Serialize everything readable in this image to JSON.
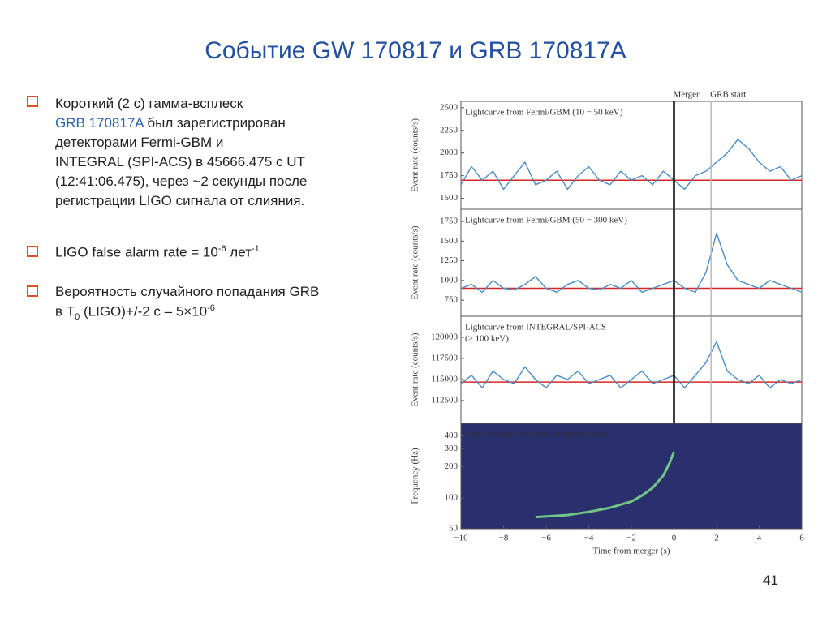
{
  "title": "Событие GW 170817 и GRB 170817A",
  "bullets": [
    {
      "lines": [
        "Короткий (2 с) гамма-всплеск",
        [
          "GRB 170817A",
          " был зарегистрирован"
        ],
        "детекторами Fermi-GBM и",
        "INTEGRAL (SPI-ACS) в 45666.475 с UT",
        "(12:41:06.475), через ~2 секунды после",
        "регистрации LIGO сигнала от слияния."
      ]
    },
    {
      "lines": [
        [
          "LIGO false alarm rate = 10",
          "-6",
          " лет",
          "-1"
        ]
      ]
    },
    {
      "lines": [
        "Вероятность случайного попадания GRB",
        [
          "в T",
          "0",
          " (LIGO)+/-2 с – 5×10",
          "-6"
        ]
      ]
    }
  ],
  "page_number": "41",
  "chart_data": [
    {
      "type": "line",
      "title": "Lightcurve from Fermi/GBM (10 − 50 keV)",
      "ylabel": "Event rate (counts/s)",
      "xlim": [
        -10,
        6
      ],
      "ylim": [
        1380,
        2570
      ],
      "yticks": [
        1500,
        1750,
        2000,
        2250,
        2500
      ],
      "annotations": [
        {
          "x": 0,
          "label": "Merger",
          "color": "#000000"
        },
        {
          "x": 1.74,
          "label": "GRB start",
          "color": "#bbbbbb"
        }
      ],
      "reference_line": {
        "value": 1700,
        "color": "#d62728"
      },
      "series": [
        {
          "color": "#4a8cc4",
          "x": [
            -10,
            -9.5,
            -9,
            -8.5,
            -8,
            -7.5,
            -7,
            -6.5,
            -6,
            -5.5,
            -5,
            -4.5,
            -4,
            -3.5,
            -3,
            -2.5,
            -2,
            -1.5,
            -1,
            -0.5,
            0,
            0.5,
            1,
            1.5,
            2,
            2.5,
            3,
            3.5,
            4,
            4.5,
            5,
            5.5,
            6
          ],
          "values": [
            1650,
            1850,
            1700,
            1800,
            1600,
            1750,
            1900,
            1650,
            1700,
            1800,
            1600,
            1750,
            1850,
            1700,
            1650,
            1800,
            1700,
            1750,
            1650,
            1800,
            1700,
            1600,
            1750,
            1800,
            1900,
            2000,
            2150,
            2050,
            1900,
            1800,
            1850,
            1700,
            1750
          ]
        }
      ]
    },
    {
      "type": "line",
      "title": "Lightcurve from Fermi/GBM (50 − 300 keV)",
      "ylabel": "Event rate (counts/s)",
      "xlim": [
        -10,
        6
      ],
      "ylim": [
        545,
        1905
      ],
      "yticks": [
        750,
        1000,
        1250,
        1500,
        1750
      ],
      "reference_line": {
        "value": 900,
        "color": "#d62728"
      },
      "series": [
        {
          "color": "#4a8cc4",
          "x": [
            -10,
            -9.5,
            -9,
            -8.5,
            -8,
            -7.5,
            -7,
            -6.5,
            -6,
            -5.5,
            -5,
            -4.5,
            -4,
            -3.5,
            -3,
            -2.5,
            -2,
            -1.5,
            -1,
            -0.5,
            0,
            0.5,
            1,
            1.5,
            2,
            2.5,
            3,
            3.5,
            4,
            4.5,
            5,
            5.5,
            6
          ],
          "values": [
            900,
            950,
            850,
            1000,
            900,
            880,
            950,
            1050,
            900,
            850,
            950,
            1000,
            900,
            880,
            950,
            900,
            1000,
            850,
            900,
            950,
            1000,
            900,
            850,
            1100,
            1600,
            1200,
            1000,
            950,
            900,
            1000,
            950,
            900,
            850
          ]
        }
      ]
    },
    {
      "type": "line",
      "title": "Lightcurve from INTEGRAL/SPI-ACS",
      "subtitle": "(> 100 keV)",
      "ylabel": "Event rate (counts/s)",
      "xlim": [
        -10,
        6
      ],
      "ylim": [
        109800,
        122500
      ],
      "yticks": [
        112500,
        115000,
        117500,
        120000
      ],
      "reference_line": {
        "value": 114700,
        "color": "#d62728"
      },
      "series": [
        {
          "color": "#4a8cc4",
          "x": [
            -10,
            -9.5,
            -9,
            -8.5,
            -8,
            -7.5,
            -7,
            -6.5,
            -6,
            -5.5,
            -5,
            -4.5,
            -4,
            -3.5,
            -3,
            -2.5,
            -2,
            -1.5,
            -1,
            -0.5,
            0,
            0.5,
            1,
            1.5,
            2,
            2.5,
            3,
            3.5,
            4,
            4.5,
            5,
            5.5,
            6
          ],
          "values": [
            114500,
            115500,
            114000,
            116000,
            115000,
            114500,
            116500,
            115000,
            114000,
            115500,
            115000,
            116000,
            114500,
            115000,
            115500,
            114000,
            115000,
            116000,
            114500,
            115000,
            115500,
            114000,
            115500,
            117000,
            119500,
            116000,
            115000,
            114500,
            115500,
            114000,
            115000,
            114500,
            115000
          ]
        }
      ]
    },
    {
      "type": "line",
      "title": "Gravitational-wave time-frequency map",
      "ylabel": "Frequency (Hz)",
      "xlabel": "Time from merger (s)",
      "log_scale": true,
      "background": "#2a2f6e",
      "xlim": [
        -10,
        6
      ],
      "xticks": [
        {
          "value": -10,
          "label": "−10"
        },
        {
          "value": -8,
          "label": "−8"
        },
        {
          "value": -6,
          "label": "−6"
        },
        {
          "value": -4,
          "label": "−4"
        },
        {
          "value": -2,
          "label": "−2"
        },
        0,
        2,
        4,
        6
      ],
      "ylim": [
        50,
        530
      ],
      "yticks": [
        50,
        100,
        200,
        300,
        400
      ],
      "series": [
        {
          "color": "#7fe08a",
          "x": [
            -6.5,
            -5,
            -4,
            -3,
            -2,
            -1.5,
            -1,
            -0.5,
            -0.2,
            0
          ],
          "values": [
            65,
            68,
            73,
            80,
            92,
            105,
            125,
            165,
            220,
            280
          ]
        }
      ]
    }
  ]
}
